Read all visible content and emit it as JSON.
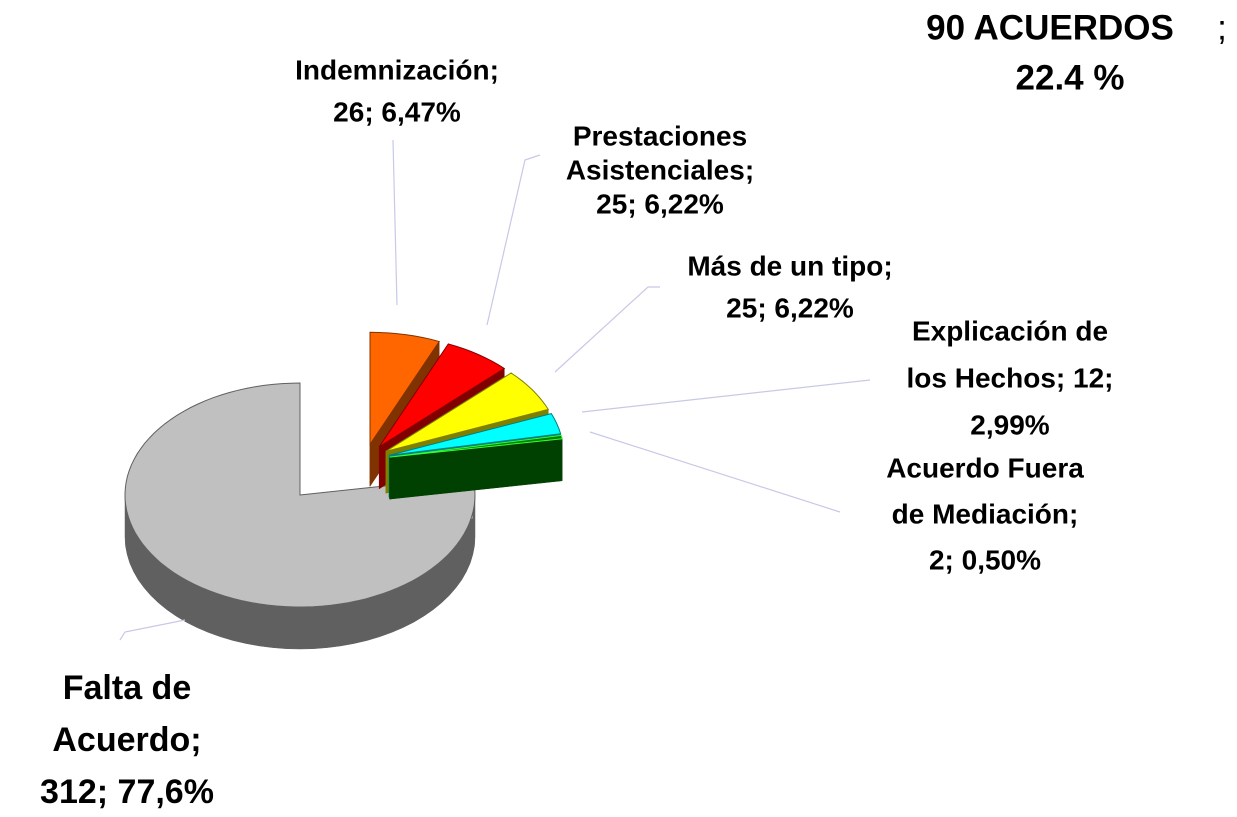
{
  "chart_data": {
    "type": "pie3d",
    "values": [
      26,
      25,
      25,
      12,
      2,
      312
    ],
    "value_labels": [
      [
        "Indemnización;",
        "26; 6,47%"
      ],
      [
        "Prestaciones",
        "Asistenciales;",
        "25; 6,22%"
      ],
      [
        "Más de un tipo;",
        "25; 6,22%"
      ],
      [
        "Explicación de",
        "los Hechos; 12;",
        "2,99%"
      ],
      [
        "Acuerdo Fuera",
        "de Mediación;",
        "2; 0,50%"
      ],
      [
        "Falta de",
        "Acuerdo;",
        "312; 77,6%"
      ]
    ],
    "colors": [
      "#ff6600",
      "#ff0000",
      "#ffff00",
      "#00ffff",
      "#008000",
      "#c0c0c0"
    ],
    "side_colors": [
      "#803300",
      "#800000",
      "#808000",
      "#008080",
      "#004000",
      "#606060"
    ],
    "annotation": {
      "text": "90 ACUERDOS",
      "separator": ";",
      "value": "22.4 %"
    }
  }
}
